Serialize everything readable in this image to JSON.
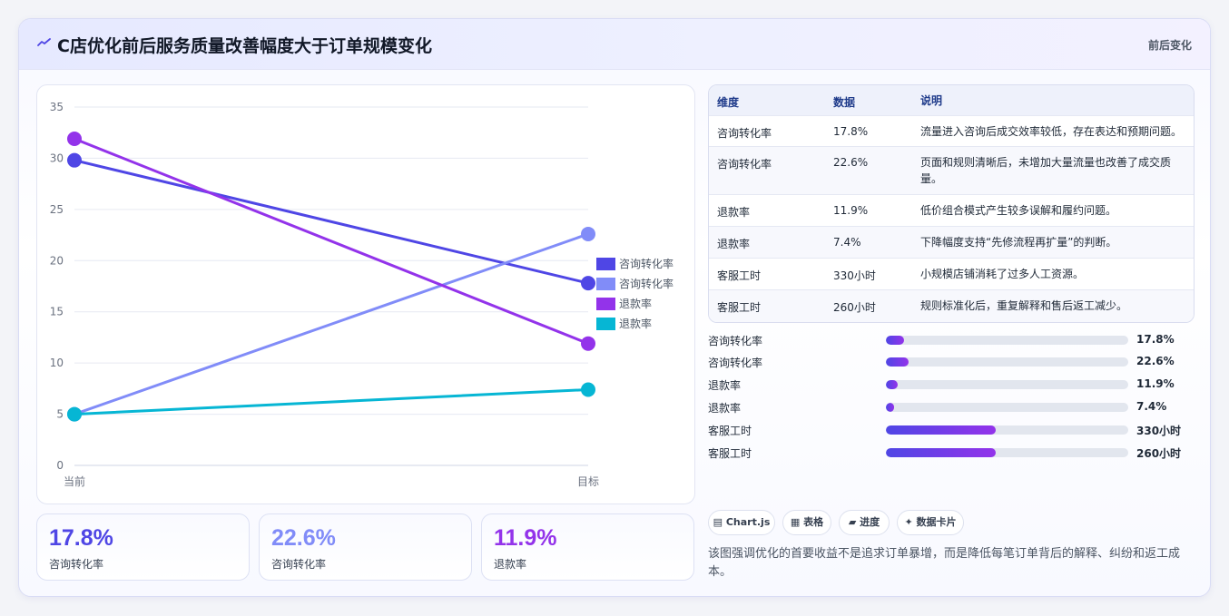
{
  "header": {
    "title": "C店优化前后服务质量改善幅度大于订单规模变化",
    "tag": "前后变化",
    "logo_icon": "sparkline-icon"
  },
  "chart_data": {
    "type": "line",
    "x": [
      "当前",
      "目标"
    ],
    "series": [
      {
        "name": "咨询转化率",
        "values": [
          29.8,
          17.8
        ],
        "color": "#4f46e5"
      },
      {
        "name": "咨询转化率",
        "values": [
          5.0,
          22.6
        ],
        "color": "#818cf8"
      },
      {
        "name": "退款率",
        "values": [
          31.9,
          11.9
        ],
        "color": "#9333ea"
      },
      {
        "name": "退款率",
        "values": [
          5.0,
          7.4
        ],
        "color": "#06b6d4"
      }
    ],
    "ylim": [
      0,
      35
    ],
    "yticks": [
      "0",
      "5",
      "10",
      "15",
      "20",
      "25",
      "30",
      "35"
    ],
    "grid": true,
    "legend": "right"
  },
  "kpis": [
    {
      "value": "17.8%",
      "label": "咨询转化率",
      "color": "#4f46e5"
    },
    {
      "value": "22.6%",
      "label": "咨询转化率",
      "color": "#818cf8"
    },
    {
      "value": "11.9%",
      "label": "退款率",
      "color": "#9333ea"
    }
  ],
  "table": {
    "headers": [
      "维度",
      "数据",
      "说明"
    ],
    "rows": [
      {
        "dim": "咨询转化率",
        "data": "17.8%",
        "desc": "流量进入咨询后成交效率较低，存在表达和预期问题。"
      },
      {
        "dim": "咨询转化率",
        "data": "22.6%",
        "desc": "页面和规则清晰后，未增加大量流量也改善了成交质量。"
      },
      {
        "dim": "退款率",
        "data": "11.9%",
        "desc": "低价组合模式产生较多误解和履约问题。"
      },
      {
        "dim": "退款率",
        "data": "7.4%",
        "desc": "下降幅度支持“先修流程再扩量”的判断。"
      },
      {
        "dim": "客服工时",
        "data": "330小时",
        "desc": "小规模店铺消耗了过多人工资源。"
      },
      {
        "dim": "客服工时",
        "data": "260小时",
        "desc": "规则标准化后，重复解释和售后返工减少。"
      }
    ]
  },
  "progress": [
    {
      "label": "咨询转化率",
      "value": "17.8%",
      "fraction": 0.075
    },
    {
      "label": "咨询转化率",
      "value": "22.6%",
      "fraction": 0.095
    },
    {
      "label": "退款率",
      "value": "11.9%",
      "fraction": 0.05
    },
    {
      "label": "退款率",
      "value": "7.4%",
      "fraction": 0.035
    },
    {
      "label": "客服工时",
      "value": "330小时",
      "fraction": 0.455
    },
    {
      "label": "客服工时",
      "value": "260小时",
      "fraction": 0.455
    }
  ],
  "chips": [
    {
      "icon": "chart-icon",
      "glyph": "▤",
      "label": "Chart.js"
    },
    {
      "icon": "table-icon",
      "glyph": "▦",
      "label": "表格"
    },
    {
      "icon": "progress-icon",
      "glyph": "▰",
      "label": "进度"
    },
    {
      "icon": "sparkle-icon",
      "glyph": "✦",
      "label": "数据卡片"
    }
  ],
  "note": "该图强调优化的首要收益不是追求订单暴增，而是降低每笔订单背后的解释、纠纷和返工成本。"
}
